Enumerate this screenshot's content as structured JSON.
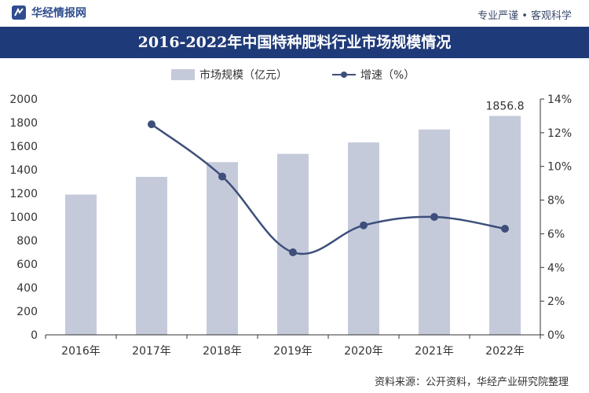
{
  "header": {
    "brand": "华经情报网",
    "slogan": "专业严谨 • 客观科学"
  },
  "chart_data": {
    "type": "bar",
    "title": "2016-2022年中国特种肥料行业市场规模情况",
    "categories": [
      "2016年",
      "2017年",
      "2018年",
      "2019年",
      "2020年",
      "2021年",
      "2022年"
    ],
    "series": [
      {
        "name": "市场规模（亿元）",
        "type": "bar",
        "axis": "left",
        "values": [
          1190,
          1340,
          1465,
          1535,
          1632,
          1742,
          1856.8
        ]
      },
      {
        "name": "增速（%）",
        "type": "line",
        "axis": "right",
        "values": [
          null,
          12.5,
          9.4,
          4.9,
          6.5,
          7.0,
          6.3
        ]
      }
    ],
    "data_labels": {
      "2022年": "1856.8"
    },
    "y_left": {
      "ylim": [
        0,
        2000
      ],
      "ticks": [
        "0",
        "200",
        "400",
        "600",
        "800",
        "1000",
        "1200",
        "1400",
        "1600",
        "1800",
        "2000"
      ]
    },
    "y_right": {
      "ylim": [
        0,
        14
      ],
      "ticks": [
        "0%",
        "2%",
        "4%",
        "6%",
        "8%",
        "10%",
        "12%",
        "14%"
      ]
    },
    "legend": {
      "placement": "top-center"
    },
    "grid": false,
    "colors": {
      "bar": "#c5cadb",
      "line": "#3d4f7a",
      "title_bg": "#1f3a78"
    }
  },
  "footer": {
    "source": "资料来源：公开资料，华经产业研究院整理"
  }
}
